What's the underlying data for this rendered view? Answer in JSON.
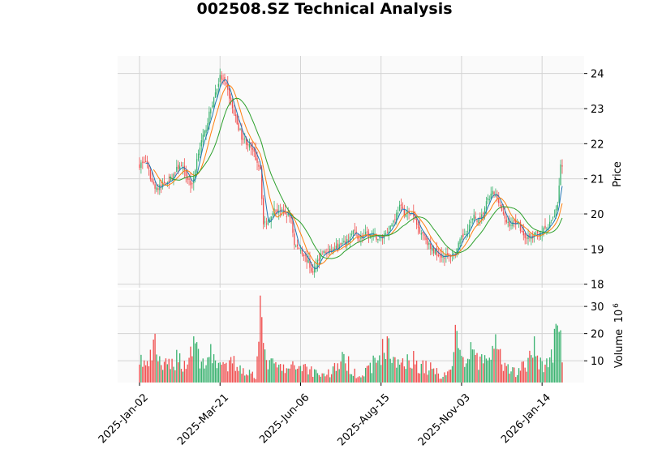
{
  "chart_data": {
    "type": "candlestick",
    "title": "002508.SZ Technical Analysis",
    "colors": {
      "up": "#3cb371",
      "down": "#f05050",
      "ma_short": "#1f77b4",
      "ma_mid": "#ff7f0e",
      "ma_long": "#2ca02c",
      "grid": "#d3d3d3",
      "panel_bg": "#fafafa"
    },
    "grid": true,
    "price_panel": {
      "ylabel": "Price",
      "ylim": [
        17.9,
        24.5
      ],
      "yticks": [
        18,
        19,
        20,
        21,
        22,
        23,
        24
      ]
    },
    "volume_panel": {
      "ylabel": "Volume",
      "multiplier_label": "10",
      "multiplier_exp": "6",
      "ylim": [
        2,
        36
      ],
      "yticks": [
        10,
        20,
        30
      ]
    },
    "x_ticks": [
      {
        "label": "2025-Jan-02",
        "index": 0
      },
      {
        "label": "2025-Mar-21",
        "index": 52
      },
      {
        "label": "2025-Jun-06",
        "index": 104
      },
      {
        "label": "2025-Aug-15",
        "index": 156
      },
      {
        "label": "2025-Nov-03",
        "index": 208
      },
      {
        "label": "2026-Jan-14",
        "index": 260
      }
    ],
    "n_sessions": 274,
    "close_anchors": [
      [
        0,
        21.4
      ],
      [
        4,
        21.5
      ],
      [
        8,
        20.9
      ],
      [
        12,
        20.7
      ],
      [
        16,
        20.9
      ],
      [
        20,
        21.0
      ],
      [
        26,
        21.4
      ],
      [
        30,
        21.1
      ],
      [
        34,
        20.8
      ],
      [
        38,
        21.8
      ],
      [
        42,
        22.3
      ],
      [
        46,
        23.0
      ],
      [
        50,
        23.6
      ],
      [
        52,
        23.9
      ],
      [
        54,
        23.8
      ],
      [
        57,
        23.5
      ],
      [
        60,
        23.0
      ],
      [
        63,
        22.6
      ],
      [
        66,
        22.2
      ],
      [
        70,
        22.0
      ],
      [
        74,
        21.7
      ],
      [
        78,
        21.3
      ],
      [
        80,
        19.7
      ],
      [
        83,
        19.8
      ],
      [
        86,
        20.1
      ],
      [
        90,
        20.1
      ],
      [
        94,
        20.0
      ],
      [
        98,
        19.9
      ],
      [
        100,
        19.1
      ],
      [
        104,
        19.0
      ],
      [
        108,
        18.7
      ],
      [
        112,
        18.3
      ],
      [
        114,
        18.6
      ],
      [
        118,
        18.9
      ],
      [
        122,
        18.9
      ],
      [
        126,
        19.0
      ],
      [
        130,
        19.1
      ],
      [
        134,
        19.2
      ],
      [
        138,
        19.5
      ],
      [
        142,
        19.3
      ],
      [
        146,
        19.4
      ],
      [
        150,
        19.4
      ],
      [
        155,
        19.3
      ],
      [
        160,
        19.5
      ],
      [
        164,
        19.8
      ],
      [
        168,
        20.2
      ],
      [
        172,
        20.0
      ],
      [
        176,
        20.0
      ],
      [
        180,
        19.6
      ],
      [
        184,
        19.4
      ],
      [
        188,
        19.0
      ],
      [
        192,
        18.9
      ],
      [
        196,
        18.8
      ],
      [
        200,
        18.8
      ],
      [
        204,
        18.9
      ],
      [
        208,
        19.3
      ],
      [
        212,
        19.6
      ],
      [
        216,
        19.9
      ],
      [
        220,
        19.8
      ],
      [
        224,
        20.3
      ],
      [
        228,
        20.6
      ],
      [
        232,
        20.4
      ],
      [
        236,
        19.8
      ],
      [
        240,
        19.7
      ],
      [
        244,
        19.8
      ],
      [
        248,
        19.4
      ],
      [
        252,
        19.3
      ],
      [
        256,
        19.4
      ],
      [
        260,
        19.5
      ],
      [
        264,
        19.6
      ],
      [
        268,
        20.0
      ],
      [
        270,
        20.3
      ],
      [
        272,
        21.4
      ],
      [
        273,
        21.3
      ]
    ],
    "volume_anchors": [
      [
        0,
        11.5
      ],
      [
        5,
        8
      ],
      [
        10,
        16
      ],
      [
        15,
        8
      ],
      [
        20,
        9
      ],
      [
        25,
        12
      ],
      [
        30,
        8
      ],
      [
        35,
        19
      ],
      [
        40,
        9
      ],
      [
        45,
        13
      ],
      [
        50,
        11
      ],
      [
        55,
        7
      ],
      [
        60,
        10
      ],
      [
        65,
        8
      ],
      [
        70,
        6
      ],
      [
        75,
        5
      ],
      [
        78,
        34
      ],
      [
        80,
        13
      ],
      [
        85,
        9
      ],
      [
        90,
        8
      ],
      [
        95,
        7
      ],
      [
        100,
        8
      ],
      [
        105,
        9
      ],
      [
        110,
        7
      ],
      [
        115,
        6
      ],
      [
        120,
        5
      ],
      [
        125,
        7
      ],
      [
        130,
        11
      ],
      [
        135,
        9
      ],
      [
        140,
        6
      ],
      [
        145,
        5
      ],
      [
        150,
        9
      ],
      [
        155,
        12
      ],
      [
        160,
        19
      ],
      [
        165,
        9
      ],
      [
        170,
        11
      ],
      [
        175,
        12
      ],
      [
        180,
        9
      ],
      [
        185,
        8
      ],
      [
        190,
        7
      ],
      [
        195,
        5
      ],
      [
        200,
        6
      ],
      [
        205,
        21
      ],
      [
        210,
        8
      ],
      [
        215,
        16
      ],
      [
        220,
        9
      ],
      [
        225,
        12
      ],
      [
        230,
        16
      ],
      [
        235,
        8
      ],
      [
        240,
        6
      ],
      [
        245,
        7
      ],
      [
        250,
        9
      ],
      [
        255,
        15
      ],
      [
        260,
        9
      ],
      [
        265,
        10
      ],
      [
        270,
        23
      ],
      [
        273,
        14
      ]
    ]
  }
}
